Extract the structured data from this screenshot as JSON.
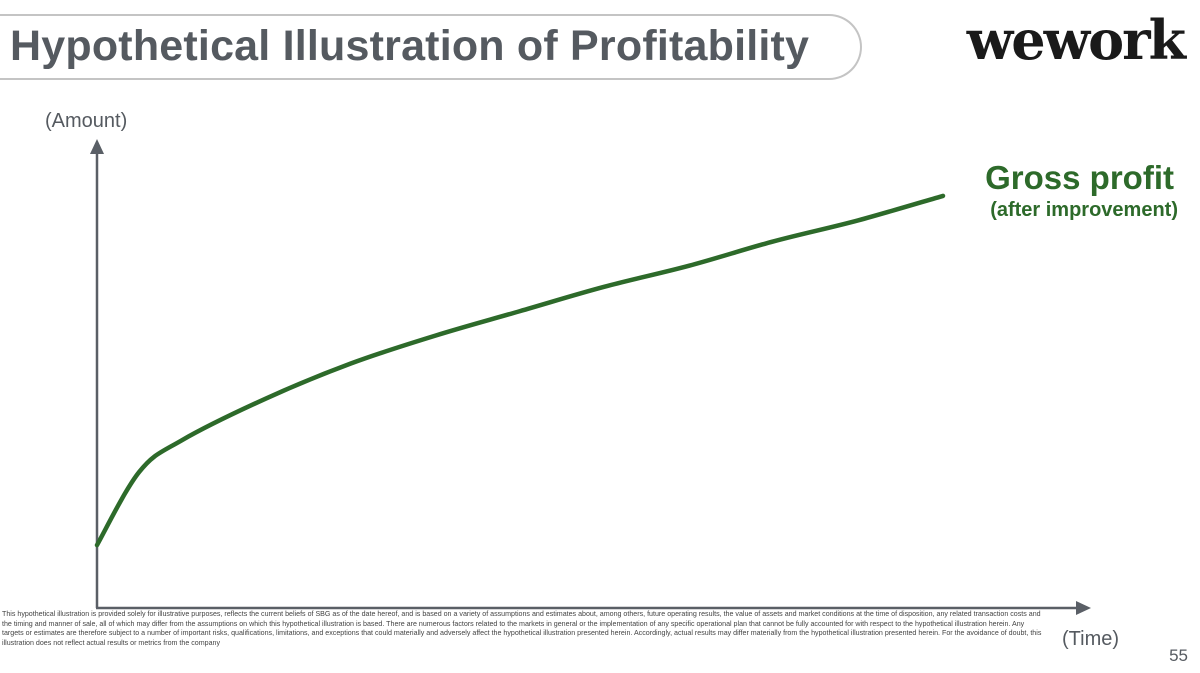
{
  "header": {
    "title": "Hypothetical Illustration of Profitability",
    "logo_text": "wework"
  },
  "chart_data": {
    "type": "line",
    "title": "",
    "ylabel": "(Amount)",
    "xlabel": "(Time)",
    "series": [
      {
        "name": "Gross profit",
        "name_sub": "(after improvement)",
        "color": "#2d6a2a",
        "shape": "concave increasing, no scale given",
        "x": [
          0,
          0.05,
          0.1,
          0.2,
          0.3,
          0.4,
          0.5,
          0.6,
          0.7,
          0.8,
          0.9,
          1.0
        ],
        "values": [
          0,
          0.21,
          0.3,
          0.42,
          0.52,
          0.6,
          0.67,
          0.74,
          0.8,
          0.87,
          0.93,
          1.0
        ]
      }
    ],
    "xlim": [
      0,
      1
    ],
    "ylim": [
      -0.18,
      1.18
    ],
    "grid": false,
    "axis_color": "#5a5f66"
  },
  "footer": {
    "disclaimer": "This hypothetical illustration is provided solely for illustrative purposes, reflects the current beliefs of SBG as of the date hereof, and is based on a variety of assumptions and estimates about, among others, future operating results, the value of assets and market conditions at the time of disposition, any related transaction costs and the timing and manner of sale, all of which may differ from the assumptions on which this hypothetical illustration is based. There are numerous factors related to the markets in general or the implementation of any specific operational plan that cannot be fully accounted for with respect to the hypothetical illustration herein. Any targets or estimates are therefore subject to a number of important risks, qualifications, limitations, and exceptions that could materially and adversely affect the hypothetical illustration presented herein. Accordingly, actual results may differ materially from the hypothetical illustration presented herein. For the avoidance of doubt, this illustration does not reflect actual results or metrics from the company",
    "page_number": "55"
  }
}
